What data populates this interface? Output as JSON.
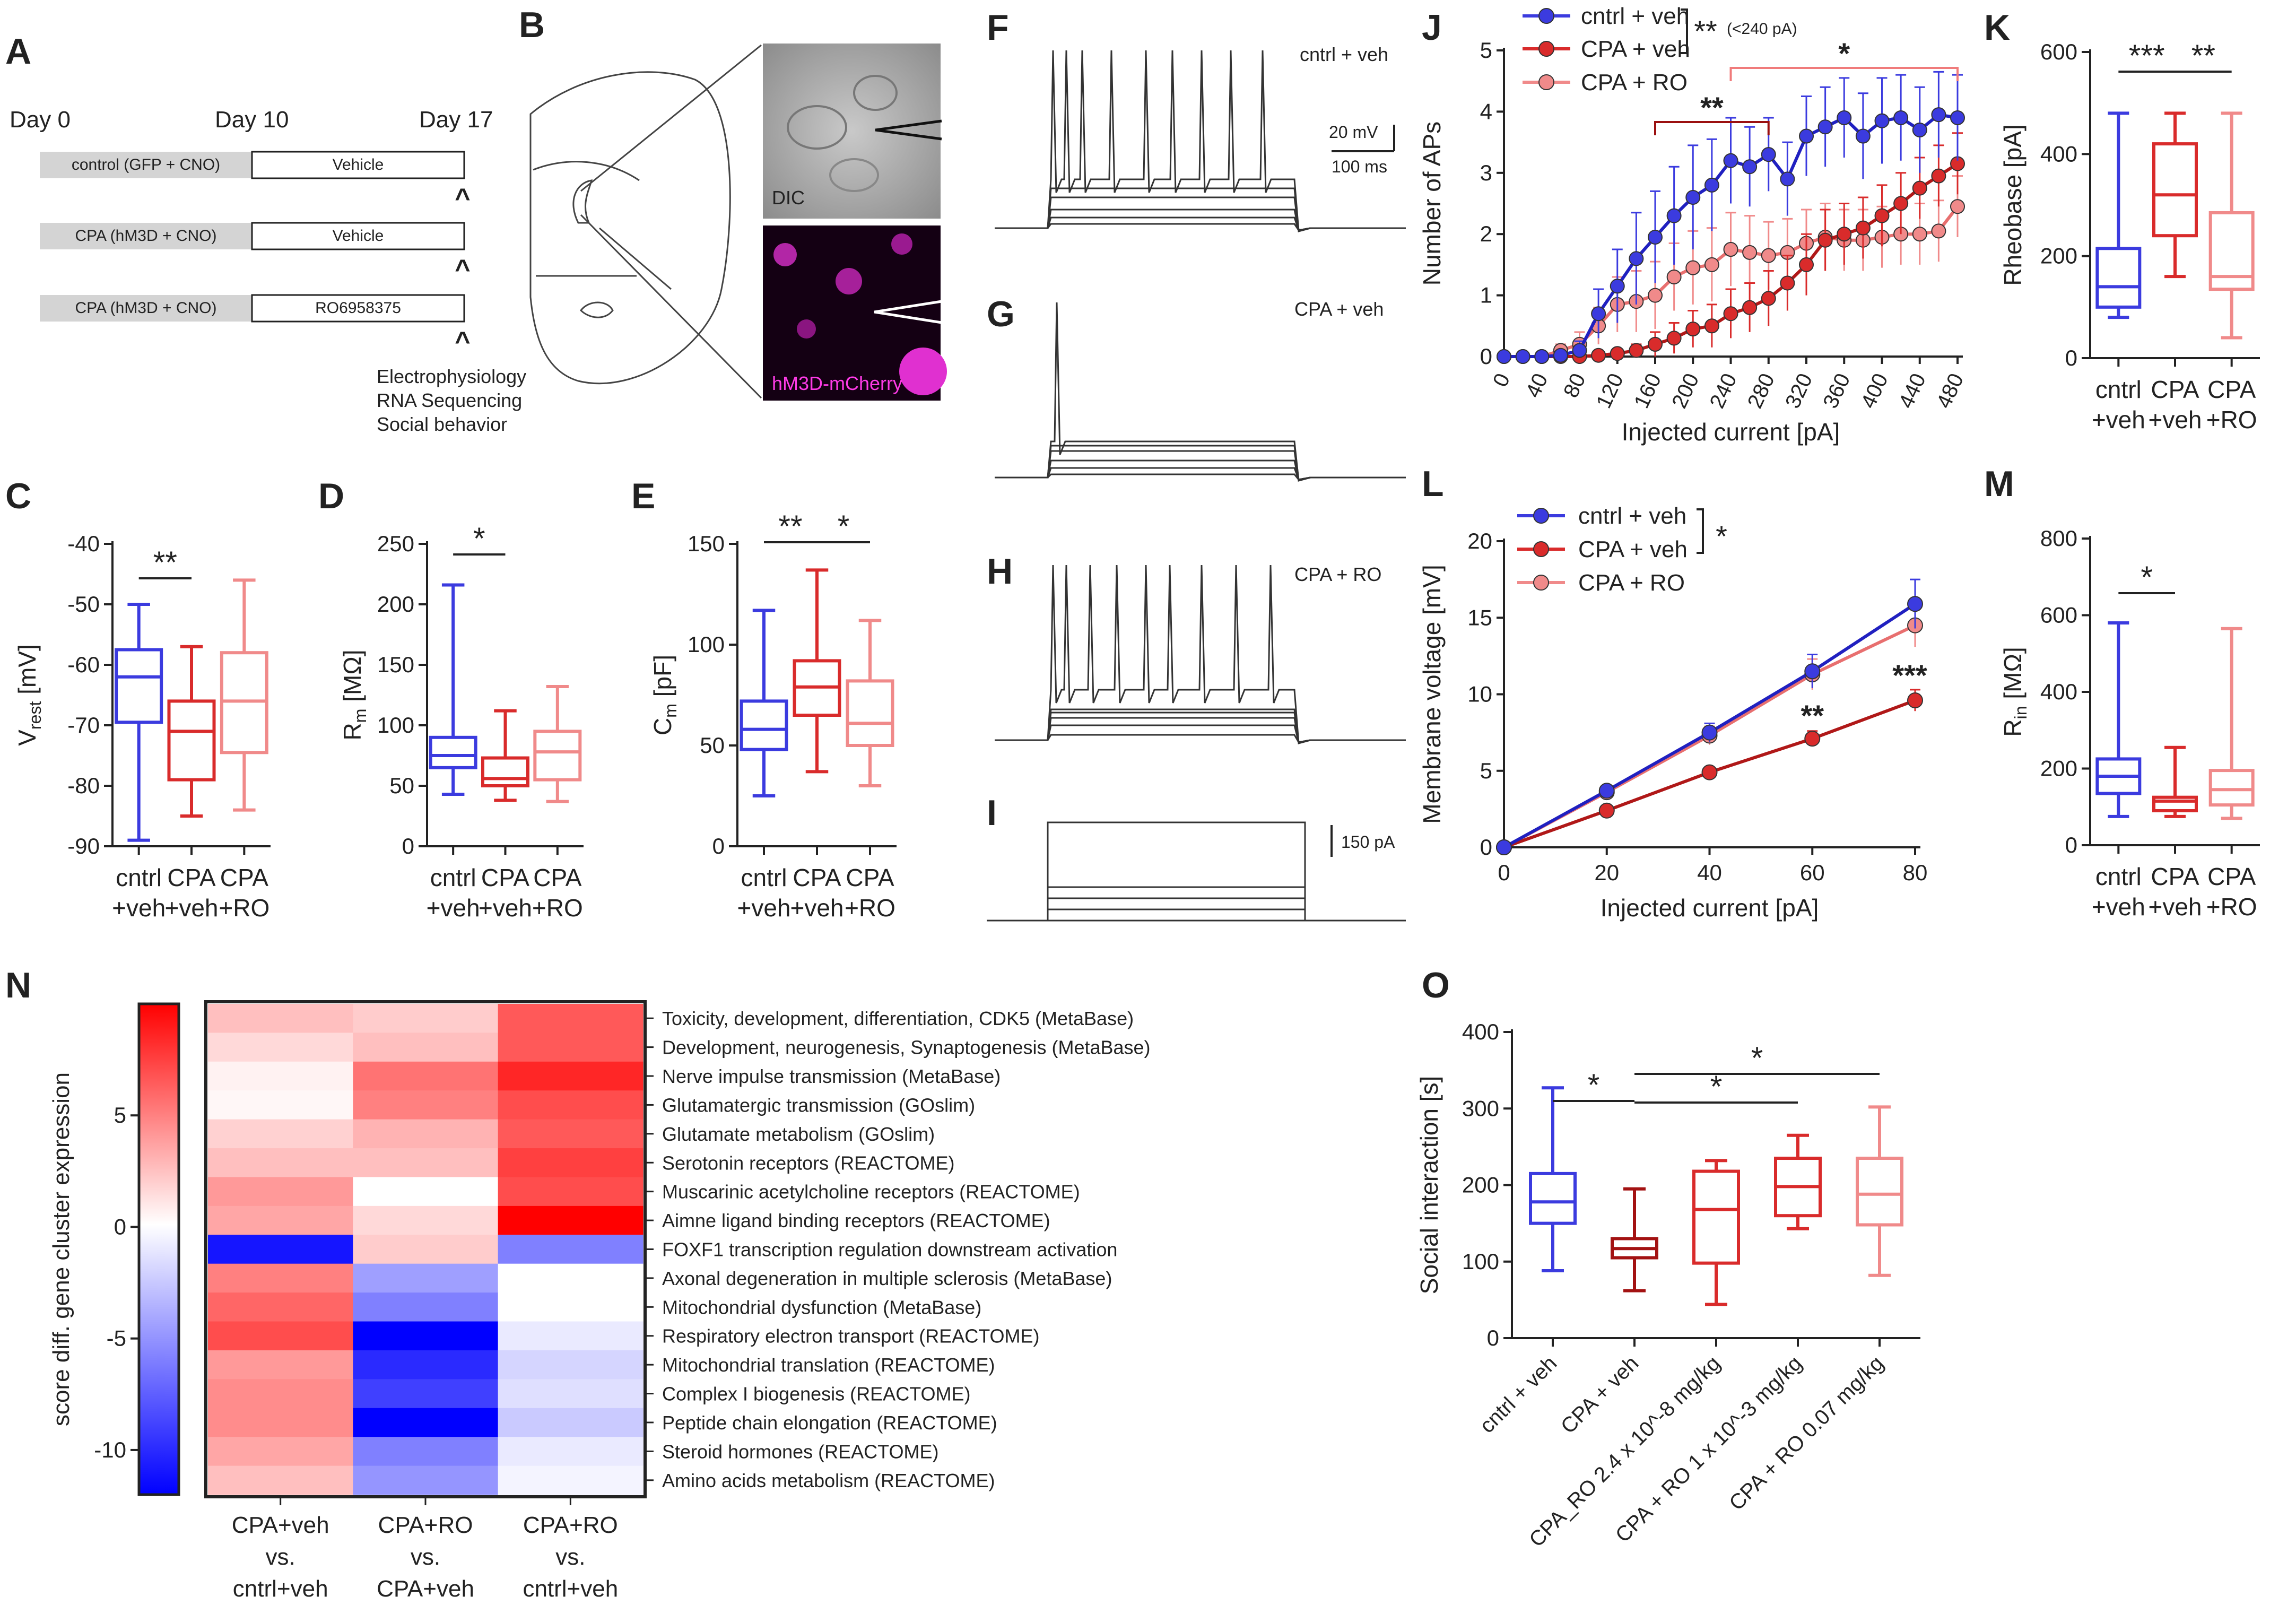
{
  "colors": {
    "cntrl_veh": "#3b3bdf",
    "cntrl_fill": "#5a5ae8",
    "cpa_veh": "#d92b2b",
    "cpa_veh_dark": "#a31212",
    "cpa_ro": "#f08a8a",
    "sig_dark_red": "#9b1010",
    "sig_pink": "#f07b7b",
    "axis": "#222222"
  },
  "panel_letters": [
    "A",
    "B",
    "C",
    "D",
    "E",
    "F",
    "G",
    "H",
    "I",
    "J",
    "K",
    "L",
    "M",
    "N",
    "O"
  ],
  "panel_A": {
    "days": [
      "Day 0",
      "Day 10",
      "Day 17"
    ],
    "rows": [
      {
        "group": "control (GFP + CNO)",
        "treatment": "Vehicle"
      },
      {
        "group": "CPA (hM3D + CNO)",
        "treatment": "Vehicle"
      },
      {
        "group": "CPA (hM3D + CNO)",
        "treatment": "RO6958375"
      }
    ],
    "caret": "^",
    "outcomes": [
      "Electrophysiology",
      "RNA Sequencing",
      "Social behavior"
    ]
  },
  "panel_B": {
    "dic_label": "DIC",
    "fluor_label": "hM3D-mCherry"
  },
  "traces": {
    "F_label": "cntrl + veh",
    "G_label": "CPA + veh",
    "H_label": "CPA + RO",
    "scale_mv": "20 mV",
    "scale_ms": "100 ms",
    "scale_pa": "150 pA"
  },
  "box_groups": [
    "cntrl\n+veh",
    "CPA\n+veh",
    "CPA\n+RO"
  ],
  "chart_data": [
    {
      "id": "C",
      "type": "box",
      "ylabel": "V_rest [mV]",
      "ylim": [
        -90,
        -40
      ],
      "yticks": [
        -90,
        -80,
        -70,
        -60,
        -50,
        -40
      ],
      "categories": [
        "cntrl +veh",
        "CPA +veh",
        "CPA +RO"
      ],
      "boxes": [
        {
          "min": -89,
          "q1": -69.5,
          "median": -62,
          "q3": -57.5,
          "max": -50
        },
        {
          "min": -85,
          "q1": -79,
          "median": -71,
          "q3": -66,
          "max": -57
        },
        {
          "min": -84,
          "q1": -74.5,
          "median": -66,
          "q3": -58,
          "max": -46
        }
      ],
      "significance": [
        {
          "from": 0,
          "to": 1,
          "label": "**"
        }
      ]
    },
    {
      "id": "D",
      "type": "box",
      "ylabel": "R_m [MΩ]",
      "ylim": [
        0,
        250
      ],
      "yticks": [
        0,
        50,
        100,
        150,
        200,
        250
      ],
      "categories": [
        "cntrl +veh",
        "CPA +veh",
        "CPA +RO"
      ],
      "boxes": [
        {
          "min": 43,
          "q1": 65,
          "median": 75,
          "q3": 90,
          "max": 216
        },
        {
          "min": 38,
          "q1": 50,
          "median": 56,
          "q3": 73,
          "max": 112
        },
        {
          "min": 37,
          "q1": 55,
          "median": 78,
          "q3": 95,
          "max": 132
        }
      ],
      "significance": [
        {
          "from": 0,
          "to": 1,
          "label": "*"
        }
      ]
    },
    {
      "id": "E",
      "type": "box",
      "ylabel": "C_m [pF]",
      "ylim": [
        0,
        150
      ],
      "yticks": [
        0,
        50,
        100,
        150
      ],
      "categories": [
        "cntrl +veh",
        "CPA +veh",
        "CPA +RO"
      ],
      "boxes": [
        {
          "min": 25,
          "q1": 48,
          "median": 58,
          "q3": 72,
          "max": 117
        },
        {
          "min": 37,
          "q1": 65,
          "median": 79,
          "q3": 92,
          "max": 137
        },
        {
          "min": 30,
          "q1": 50,
          "median": 61,
          "q3": 82,
          "max": 112
        }
      ],
      "significance": [
        {
          "from": 0,
          "to": 1,
          "label": "**"
        },
        {
          "from": 1,
          "to": 2,
          "label": "*"
        }
      ]
    },
    {
      "id": "J",
      "type": "line",
      "xlabel": "Injected current [pA]",
      "ylabel": "Number of APs",
      "ylim": [
        0,
        5
      ],
      "yticks": [
        0,
        1,
        2,
        3,
        4,
        5
      ],
      "xticks": [
        0,
        40,
        80,
        120,
        160,
        200,
        240,
        280,
        320,
        360,
        400,
        440,
        480
      ],
      "x": [
        0,
        20,
        40,
        60,
        80,
        100,
        120,
        140,
        160,
        180,
        200,
        220,
        240,
        260,
        280,
        300,
        320,
        340,
        360,
        380,
        400,
        420,
        440,
        460,
        480
      ],
      "series": [
        {
          "name": "cntrl + veh",
          "key": "cntrl",
          "values": [
            0,
            0,
            0,
            0.02,
            0.1,
            0.7,
            1.15,
            1.6,
            1.95,
            2.3,
            2.6,
            2.8,
            3.2,
            3.1,
            3.3,
            2.9,
            3.6,
            3.75,
            3.9,
            3.6,
            3.85,
            3.9,
            3.7,
            3.95,
            3.9
          ],
          "errors": [
            0,
            0,
            0,
            0.05,
            0.15,
            0.4,
            0.6,
            0.75,
            0.75,
            0.8,
            0.85,
            0.75,
            0.7,
            0.65,
            0.6,
            0.6,
            0.65,
            0.65,
            0.65,
            0.7,
            0.7,
            0.7,
            0.7,
            0.7,
            0.7
          ]
        },
        {
          "name": "CPA + veh",
          "key": "cpa",
          "values": [
            0,
            0,
            0,
            0,
            0,
            0.02,
            0.05,
            0.1,
            0.2,
            0.3,
            0.45,
            0.5,
            0.7,
            0.8,
            0.95,
            1.2,
            1.5,
            1.9,
            2.0,
            2.1,
            2.3,
            2.5,
            2.75,
            2.95,
            3.15
          ],
          "errors": [
            0,
            0,
            0,
            0,
            0,
            0.05,
            0.05,
            0.1,
            0.2,
            0.25,
            0.3,
            0.35,
            0.4,
            0.4,
            0.45,
            0.45,
            0.5,
            0.5,
            0.5,
            0.5,
            0.5,
            0.5,
            0.5,
            0.5,
            0.5
          ]
        },
        {
          "name": "CPA + RO",
          "key": "ro",
          "values": [
            0,
            0,
            0,
            0.1,
            0.2,
            0.5,
            0.85,
            0.9,
            1.0,
            1.3,
            1.45,
            1.5,
            1.75,
            1.7,
            1.65,
            1.7,
            1.85,
            1.95,
            1.9,
            1.9,
            1.95,
            2.0,
            2.0,
            2.05,
            2.45
          ],
          "errors": [
            0,
            0,
            0,
            0.1,
            0.2,
            0.3,
            0.45,
            0.5,
            0.55,
            0.55,
            0.6,
            0.6,
            0.6,
            0.6,
            0.55,
            0.55,
            0.55,
            0.55,
            0.5,
            0.5,
            0.5,
            0.5,
            0.5,
            0.5,
            0.5
          ]
        }
      ],
      "annotations": [
        {
          "label": "**",
          "note": "(<240 pA)",
          "between": "cntrl + veh vs CPA + veh"
        },
        {
          "label": "**",
          "from_x": 160,
          "to_x": 280,
          "color": "sig_dark_red"
        },
        {
          "label": "*",
          "from_x": 240,
          "to_x": 480,
          "color": "sig_pink"
        }
      ]
    },
    {
      "id": "K",
      "type": "box",
      "ylabel": "Rheobase [pA]",
      "ylim": [
        0,
        600
      ],
      "yticks": [
        0,
        200,
        400,
        600
      ],
      "categories": [
        "cntrl +veh",
        "CPA +veh",
        "CPA +RO"
      ],
      "boxes": [
        {
          "min": 80,
          "q1": 100,
          "median": 140,
          "q3": 215,
          "max": 480
        },
        {
          "min": 160,
          "q1": 240,
          "median": 320,
          "q3": 420,
          "max": 480
        },
        {
          "min": 40,
          "q1": 135,
          "median": 160,
          "q3": 285,
          "max": 480
        }
      ],
      "significance": [
        {
          "from": 0,
          "to": 1,
          "label": "***"
        },
        {
          "from": 1,
          "to": 2,
          "label": "**"
        }
      ]
    },
    {
      "id": "L",
      "type": "line",
      "xlabel": "Injected current [pA]",
      "ylabel": "Membrane voltage [mV]",
      "ylim": [
        0,
        20
      ],
      "yticks": [
        0,
        5,
        10,
        15,
        20
      ],
      "xticks": [
        0,
        20,
        40,
        60,
        80
      ],
      "x": [
        0,
        20,
        40,
        60,
        80
      ],
      "series": [
        {
          "name": "cntrl + veh",
          "key": "cntrl",
          "values": [
            0,
            3.7,
            7.5,
            11.5,
            15.9
          ],
          "errors": [
            0,
            0.3,
            0.6,
            1.1,
            1.6
          ]
        },
        {
          "name": "CPA + veh",
          "key": "cpa",
          "values": [
            0,
            2.4,
            4.9,
            7.1,
            9.6
          ],
          "errors": [
            0,
            0.2,
            0.3,
            0.5,
            0.7
          ]
        },
        {
          "name": "CPA + RO",
          "key": "ro",
          "values": [
            0,
            3.6,
            7.3,
            11.3,
            14.5
          ],
          "errors": [
            0,
            0.3,
            0.6,
            1.0,
            1.4
          ]
        }
      ],
      "annotations": [
        {
          "label": "*",
          "between": "cntrl + veh vs CPA + veh"
        },
        {
          "label": "**",
          "at_x": 60
        },
        {
          "label": "***",
          "at_x": 80
        }
      ]
    },
    {
      "id": "M",
      "type": "box",
      "ylabel": "R_in [MΩ]",
      "ylim": [
        0,
        800
      ],
      "yticks": [
        0,
        200,
        400,
        600,
        800
      ],
      "categories": [
        "cntrl +veh",
        "CPA +veh",
        "CPA +RO"
      ],
      "boxes": [
        {
          "min": 75,
          "q1": 135,
          "median": 180,
          "q3": 225,
          "max": 580
        },
        {
          "min": 75,
          "q1": 90,
          "median": 115,
          "q3": 125,
          "max": 255
        },
        {
          "min": 70,
          "q1": 105,
          "median": 145,
          "q3": 195,
          "max": 565
        }
      ],
      "significance": [
        {
          "from": 0,
          "to": 1,
          "label": "*"
        }
      ]
    },
    {
      "id": "N",
      "type": "heatmap",
      "colorbar_label": "score diff. gene cluster expression",
      "colorbar_range": [
        -12,
        10
      ],
      "colorbar_ticks": [
        5,
        0,
        -5,
        -10
      ],
      "columns": [
        "CPA+veh\nvs.\ncntrl+veh",
        "CPA+RO\nvs.\nCPA+veh",
        "CPA+RO\nvs.\ncntrl+veh"
      ],
      "rows": [
        "Toxicity, development, differentiation, CDK5 (MetaBase)",
        "Development, neurogenesis, Synaptogenesis (MetaBase)",
        "Nerve impulse transmission (MetaBase)",
        "Glutamatergic transmission (GOslim)",
        "Glutamate metabolism (GOslim)",
        "Serotonin receptors (REACTOME)",
        "Muscarinic acetylcholine receptors (REACTOME)",
        "Aimne ligand binding receptors (REACTOME)",
        "FOXF1 transcription regulation downstream activation",
        "Axonal degeneration in multiple sclerosis (MetaBase)",
        "Mitochondrial dysfunction (MetaBase)",
        "Respiratory electron transport (REACTOME)",
        "Mitochondrial translation (REACTOME)",
        "Complex I biogenesis (REACTOME)",
        "Peptide chain elongation (REACTOME)",
        "Steroid hormones (REACTOME)",
        "Amino acids metabolism (REACTOME)"
      ],
      "values": [
        [
          2.5,
          2.0,
          6.5
        ],
        [
          1.5,
          2.5,
          6.5
        ],
        [
          0.5,
          5.5,
          8.5
        ],
        [
          0.3,
          5.0,
          7.0
        ],
        [
          1.8,
          3.0,
          6.5
        ],
        [
          2.5,
          2.5,
          7.5
        ],
        [
          4.0,
          0.0,
          7.0
        ],
        [
          3.5,
          1.5,
          10.0
        ],
        [
          -11.0,
          2.0,
          -6.0
        ],
        [
          5.0,
          -4.5,
          0.0
        ],
        [
          6.0,
          -6.0,
          0.0
        ],
        [
          7.0,
          -12.0,
          -1.0
        ],
        [
          4.0,
          -10.0,
          -2.0
        ],
        [
          4.5,
          -9.0,
          -1.5
        ],
        [
          4.5,
          -12.0,
          -2.5
        ],
        [
          3.5,
          -6.0,
          -1.0
        ],
        [
          2.5,
          -5.0,
          -0.5
        ]
      ]
    },
    {
      "id": "O",
      "type": "box",
      "ylabel": "Social interaction [s]",
      "ylim": [
        0,
        400
      ],
      "yticks": [
        0,
        100,
        200,
        300,
        400
      ],
      "categories": [
        "cntrl + veh",
        "CPA + veh",
        "CPA_RO 2.4 x 10^-8 mg/kg",
        "CPA + RO 1 x 10^-3 mg/kg",
        "CPA + RO 0.07 mg/kg"
      ],
      "boxes": [
        {
          "min": 88,
          "q1": 150,
          "median": 178,
          "q3": 215,
          "max": 327
        },
        {
          "min": 62,
          "q1": 105,
          "median": 117,
          "q3": 130,
          "max": 195
        },
        {
          "min": 44,
          "q1": 98,
          "median": 168,
          "q3": 218,
          "max": 232
        },
        {
          "min": 143,
          "q1": 160,
          "median": 198,
          "q3": 235,
          "max": 265
        },
        {
          "min": 82,
          "q1": 148,
          "median": 188,
          "q3": 235,
          "max": 302
        }
      ],
      "significance": [
        {
          "from": 0,
          "to": 1,
          "label": "*"
        },
        {
          "from": 1,
          "to": 4,
          "label": "*"
        },
        {
          "from": 1,
          "to": 3,
          "label": "*"
        }
      ]
    }
  ]
}
